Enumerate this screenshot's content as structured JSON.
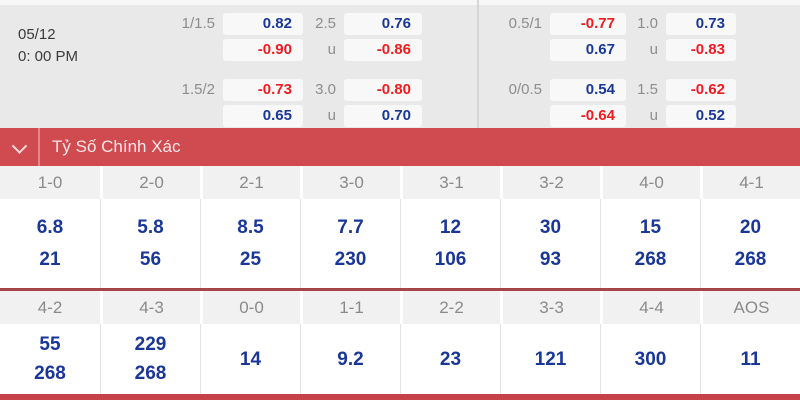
{
  "colors": {
    "blue": "#1a3798",
    "red": "#ef1b21",
    "bar": "#d04b50"
  },
  "header": {
    "date": "05/12",
    "time": "0: 00 PM"
  },
  "odds": {
    "groups": [
      {
        "rows": [
          {
            "label": "1/1.5",
            "value": "0.82",
            "color": "blue"
          },
          {
            "label": "",
            "value": "-0.90",
            "color": "red"
          },
          {
            "label": "1.5/2",
            "value": "-0.73",
            "color": "red"
          },
          {
            "label": "",
            "value": "0.65",
            "color": "blue"
          }
        ]
      },
      {
        "rows": [
          {
            "label": "2.5",
            "value": "0.76",
            "color": "blue"
          },
          {
            "label": "u",
            "value": "-0.86",
            "color": "red"
          },
          {
            "label": "3.0",
            "value": "-0.80",
            "color": "red"
          },
          {
            "label": "u",
            "value": "0.70",
            "color": "blue"
          }
        ]
      },
      {
        "rows": [
          {
            "label": "0.5/1",
            "value": "-0.77",
            "color": "red"
          },
          {
            "label": "",
            "value": "0.67",
            "color": "blue"
          },
          {
            "label": "0/0.5",
            "value": "0.54",
            "color": "blue"
          },
          {
            "label": "",
            "value": "-0.64",
            "color": "red"
          }
        ]
      },
      {
        "rows": [
          {
            "label": "1.0",
            "value": "0.73",
            "color": "blue"
          },
          {
            "label": "u",
            "value": "-0.83",
            "color": "red"
          },
          {
            "label": "1.5",
            "value": "-0.62",
            "color": "red"
          },
          {
            "label": "u",
            "value": "0.52",
            "color": "blue"
          }
        ]
      }
    ]
  },
  "section": {
    "title": "Tỷ Số Chính Xác"
  },
  "score_table": {
    "rows": [
      {
        "cells": [
          {
            "score": "1-0",
            "values": [
              "6.8",
              "21"
            ]
          },
          {
            "score": "2-0",
            "values": [
              "5.8",
              "56"
            ]
          },
          {
            "score": "2-1",
            "values": [
              "8.5",
              "25"
            ]
          },
          {
            "score": "3-0",
            "values": [
              "7.7",
              "230"
            ]
          },
          {
            "score": "3-1",
            "values": [
              "12",
              "106"
            ]
          },
          {
            "score": "3-2",
            "values": [
              "30",
              "93"
            ]
          },
          {
            "score": "4-0",
            "values": [
              "15",
              "268"
            ]
          },
          {
            "score": "4-1",
            "values": [
              "20",
              "268"
            ]
          }
        ]
      },
      {
        "cells": [
          {
            "score": "4-2",
            "values": [
              "55",
              "268"
            ]
          },
          {
            "score": "4-3",
            "values": [
              "229",
              "268"
            ]
          },
          {
            "score": "0-0",
            "values": [
              "14"
            ]
          },
          {
            "score": "1-1",
            "values": [
              "9.2"
            ]
          },
          {
            "score": "2-2",
            "values": [
              "23"
            ]
          },
          {
            "score": "3-3",
            "values": [
              "121"
            ]
          },
          {
            "score": "4-4",
            "values": [
              "300"
            ]
          },
          {
            "score": "AOS",
            "values": [
              "11"
            ]
          }
        ]
      }
    ]
  }
}
